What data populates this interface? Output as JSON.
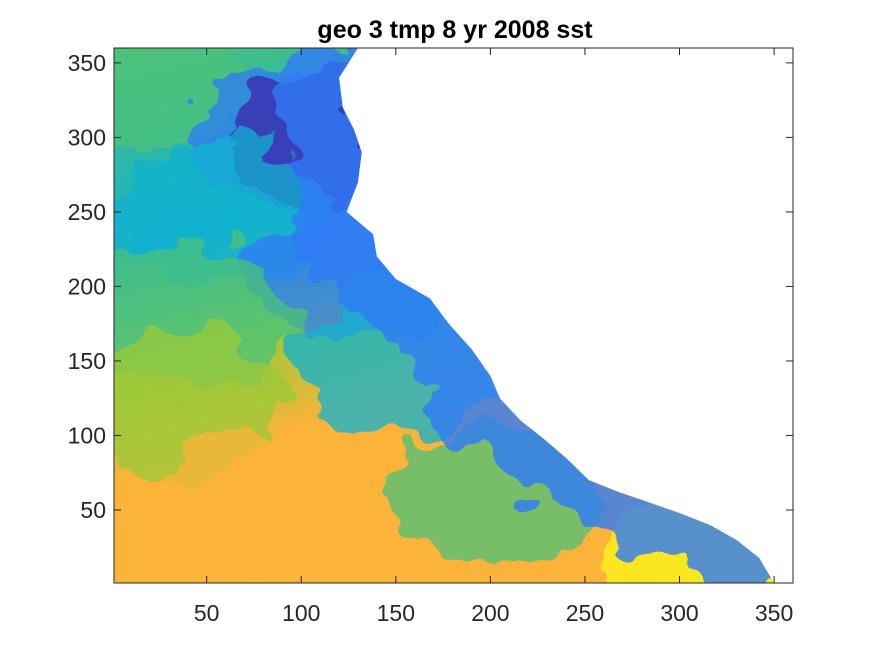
{
  "chart_data": {
    "type": "heatmap",
    "title": "geo 3 tmp 8 yr 2008 sst",
    "xlabel": "",
    "ylabel": "",
    "xlim": [
      1,
      360
    ],
    "ylim": [
      1,
      360
    ],
    "x_ticks": [
      50,
      100,
      150,
      200,
      250,
      300,
      350
    ],
    "y_ticks": [
      50,
      100,
      150,
      200,
      250,
      300,
      350
    ],
    "grid": false,
    "colormap": "parula",
    "colors": {
      "cold": "#3e26a8",
      "cool": "#2f7bf6",
      "mid_cool": "#13b1cf",
      "mid": "#4cc17a",
      "mid_warm": "#9ac93a",
      "warm": "#fbb33a",
      "hot": "#f9f81c",
      "land": "#ffffff"
    },
    "land_boundary": [
      [
        130,
        360
      ],
      [
        120,
        340
      ],
      [
        122,
        320
      ],
      [
        128,
        305
      ],
      [
        132,
        290
      ],
      [
        130,
        270
      ],
      [
        124,
        250
      ],
      [
        138,
        235
      ],
      [
        140,
        220
      ],
      [
        150,
        205
      ],
      [
        168,
        192
      ],
      [
        178,
        175
      ],
      [
        190,
        158
      ],
      [
        200,
        140
      ],
      [
        205,
        125
      ],
      [
        216,
        110
      ],
      [
        228,
        98
      ],
      [
        240,
        85
      ],
      [
        252,
        70
      ],
      [
        268,
        62
      ],
      [
        284,
        55
      ],
      [
        300,
        48
      ],
      [
        316,
        40
      ],
      [
        330,
        30
      ],
      [
        342,
        18
      ],
      [
        350,
        1
      ]
    ],
    "field_samples": [
      {
        "x": 20,
        "y": 340,
        "value": 0.45
      },
      {
        "x": 100,
        "y": 300,
        "value": 0.15
      },
      {
        "x": 120,
        "y": 300,
        "value": 0.05
      },
      {
        "x": 60,
        "y": 250,
        "value": 0.35
      },
      {
        "x": 130,
        "y": 210,
        "value": 0.2
      },
      {
        "x": 40,
        "y": 180,
        "value": 0.55
      },
      {
        "x": 150,
        "y": 150,
        "value": 0.35
      },
      {
        "x": 30,
        "y": 120,
        "value": 0.72
      },
      {
        "x": 80,
        "y": 60,
        "value": 0.85
      },
      {
        "x": 200,
        "y": 60,
        "value": 0.55
      },
      {
        "x": 320,
        "y": 20,
        "value": 0.95
      }
    ]
  }
}
